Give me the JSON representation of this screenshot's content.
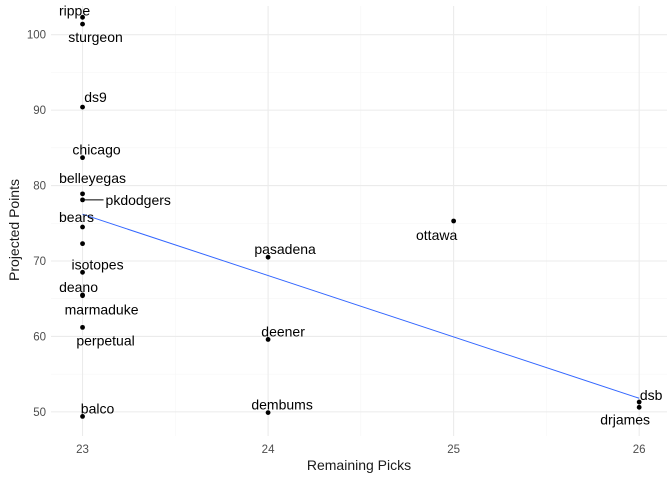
{
  "chart_data": {
    "type": "scatter",
    "xlabel": "Remaining Picks",
    "ylabel": "Projected Points",
    "xlim": [
      22.83,
      26.15
    ],
    "ylim": [
      46.8,
      103.8
    ],
    "x_ticks": [
      23,
      24,
      25,
      26
    ],
    "y_ticks": [
      50,
      60,
      70,
      80,
      90,
      100
    ],
    "grid": true,
    "points": [
      {
        "label": "rippe",
        "x": 23,
        "y": 102.3
      },
      {
        "label": "sturgeon",
        "x": 23,
        "y": 101.4
      },
      {
        "label": "ds9",
        "x": 23,
        "y": 90.4
      },
      {
        "label": "chicago",
        "x": 23,
        "y": 83.7
      },
      {
        "label": "belleyegas",
        "x": 23,
        "y": 78.9
      },
      {
        "label": "pkdodgers",
        "x": 23,
        "y": 78.1
      },
      {
        "label": "bears",
        "x": 23,
        "y": 74.5
      },
      {
        "label": "",
        "x": 23,
        "y": 72.3
      },
      {
        "label": "isotopes",
        "x": 23,
        "y": 68.5
      },
      {
        "label": "deano",
        "x": 23,
        "y": 65.5
      },
      {
        "label": "marmaduke",
        "x": 23,
        "y": 65.4
      },
      {
        "label": "perpetual",
        "x": 23,
        "y": 61.2
      },
      {
        "label": "balco",
        "x": 23,
        "y": 49.4
      },
      {
        "label": "pasadena",
        "x": 24,
        "y": 70.5
      },
      {
        "label": "deener",
        "x": 24,
        "y": 59.6
      },
      {
        "label": "dembums",
        "x": 24,
        "y": 49.9
      },
      {
        "label": "ottawa",
        "x": 25,
        "y": 75.3
      },
      {
        "label": "dsb",
        "x": 26,
        "y": 51.3
      },
      {
        "label": "drjames",
        "x": 26,
        "y": 50.6
      }
    ],
    "trend_line": {
      "x": [
        23,
        26
      ],
      "y": [
        76.2,
        51.8
      ]
    }
  }
}
